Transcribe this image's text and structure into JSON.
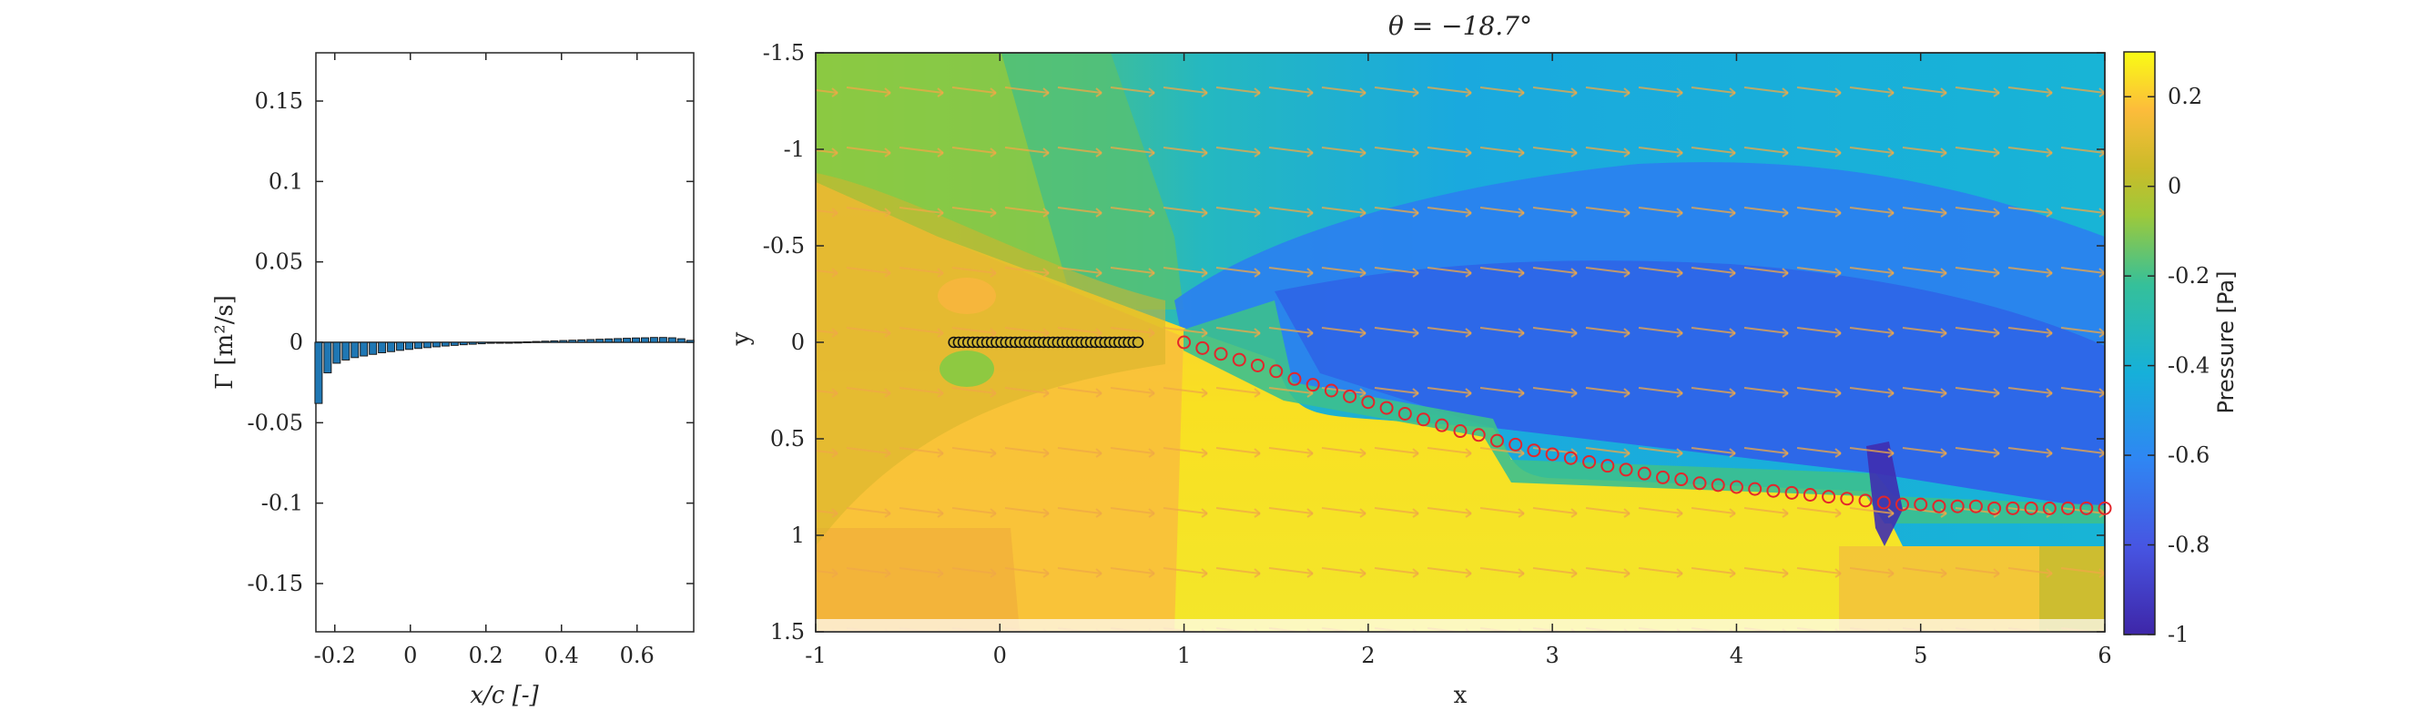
{
  "chart_data": [
    {
      "type": "bar",
      "xlabel": "x/c [-]",
      "ylabel": "Γ [m²/s]",
      "xlim": [
        -0.25,
        0.75
      ],
      "ylim": [
        -0.18,
        0.18
      ],
      "xticks": [
        "-0.2",
        "0",
        "0.2",
        "0.4",
        "0.6"
      ],
      "yticks": [
        "-0.15",
        "-0.1",
        "-0.05",
        "0",
        "0.05",
        "0.1",
        "0.15"
      ],
      "x": [
        -0.243,
        -0.219,
        -0.195,
        -0.171,
        -0.147,
        -0.123,
        -0.099,
        -0.075,
        -0.051,
        -0.027,
        -0.003,
        0.021,
        0.045,
        0.069,
        0.093,
        0.117,
        0.141,
        0.165,
        0.189,
        0.213,
        0.237,
        0.261,
        0.285,
        0.309,
        0.333,
        0.357,
        0.381,
        0.405,
        0.429,
        0.453,
        0.477,
        0.501,
        0.525,
        0.549,
        0.573,
        0.597,
        0.621,
        0.645,
        0.669,
        0.693,
        0.717,
        0.741
      ],
      "values": [
        -0.038,
        -0.019,
        -0.013,
        -0.011,
        -0.0095,
        -0.0085,
        -0.0075,
        -0.0065,
        -0.0058,
        -0.005,
        -0.0044,
        -0.0038,
        -0.0033,
        -0.0028,
        -0.0023,
        -0.0019,
        -0.0015,
        -0.0012,
        -0.0009,
        -0.0006,
        -0.0004,
        -0.0002,
        0.0001,
        0.0003,
        0.0005,
        0.0007,
        0.0009,
        0.0011,
        0.0013,
        0.0015,
        0.0017,
        0.0019,
        0.0021,
        0.0023,
        0.0025,
        0.0027,
        0.0028,
        0.003,
        0.003,
        0.0028,
        0.0022,
        0.0012
      ],
      "bar_color": "#1f77b4"
    },
    {
      "type": "heatmap",
      "title": "θ = −18.7°",
      "xlabel": "x",
      "ylabel": "y",
      "xlim": [
        -1,
        6
      ],
      "ylim": [
        -1.5,
        1.5
      ],
      "y_reversed": true,
      "xticks": [
        "-1",
        "0",
        "1",
        "2",
        "3",
        "4",
        "5",
        "6"
      ],
      "yticks": [
        "-1.5",
        "-1",
        "-0.5",
        "0",
        "0.5",
        "1",
        "1.5"
      ],
      "colorbar": {
        "label": "Pressure [Pa]",
        "range": [
          -1,
          0.3
        ],
        "ticks": [
          "0.2",
          "0",
          "-0.2",
          "-0.4",
          "-0.6",
          "-0.8",
          "-1"
        ]
      },
      "airfoil": {
        "x_start": -0.25,
        "x_end": 0.75,
        "y": 0,
        "count": 40
      },
      "wake_points": {
        "x": [
          1.0,
          1.1,
          1.2,
          1.3,
          1.4,
          1.5,
          1.6,
          1.7,
          1.8,
          1.9,
          2.0,
          2.1,
          2.2,
          2.3,
          2.4,
          2.5,
          2.6,
          2.7,
          2.8,
          2.9,
          3.0,
          3.1,
          3.2,
          3.3,
          3.4,
          3.5,
          3.6,
          3.7,
          3.8,
          3.9,
          4.0,
          4.1,
          4.2,
          4.3,
          4.4,
          4.5,
          4.6,
          4.7,
          4.8,
          4.9,
          5.0,
          5.1,
          5.2,
          5.3,
          5.4,
          5.5,
          5.6,
          5.7,
          5.8,
          5.9,
          6.0
        ],
        "y": [
          0.0,
          0.03,
          0.06,
          0.09,
          0.12,
          0.15,
          0.19,
          0.22,
          0.25,
          0.28,
          0.31,
          0.34,
          0.37,
          0.4,
          0.43,
          0.46,
          0.48,
          0.51,
          0.53,
          0.56,
          0.58,
          0.6,
          0.62,
          0.64,
          0.66,
          0.68,
          0.7,
          0.71,
          0.73,
          0.74,
          0.75,
          0.76,
          0.77,
          0.78,
          0.79,
          0.8,
          0.81,
          0.82,
          0.83,
          0.84,
          0.84,
          0.85,
          0.85,
          0.85,
          0.86,
          0.86,
          0.86,
          0.86,
          0.86,
          0.86,
          0.86
        ]
      }
    }
  ]
}
